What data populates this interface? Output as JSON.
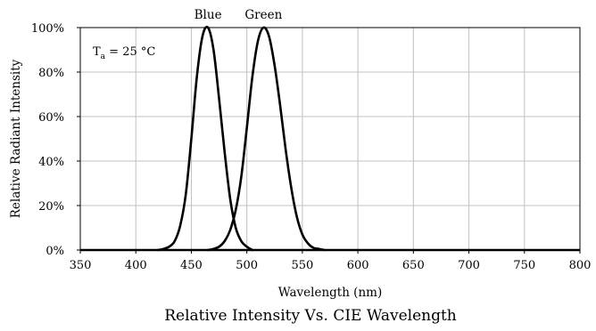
{
  "chart_data": {
    "type": "line",
    "title": "Relative Intensity Vs. CIE Wavelength",
    "xlabel": "Wavelength (nm)",
    "ylabel": "Relative Radiant Intensity",
    "xlim": [
      350,
      800
    ],
    "ylim": [
      0,
      100
    ],
    "x_ticks": [
      350,
      400,
      450,
      500,
      550,
      600,
      650,
      700,
      750,
      800
    ],
    "y_ticks": [
      0,
      20,
      40,
      60,
      80,
      100
    ],
    "y_tick_labels": [
      "0%",
      "20%",
      "40%",
      "60%",
      "80%",
      "100%"
    ],
    "grid": true,
    "annotation": {
      "symbol": "T",
      "subscript": "a",
      "text": " = 25 °C"
    },
    "line_color": "#000000",
    "grid_color": "#c0c0c0",
    "series": [
      {
        "name": "Blue",
        "x": [
          420,
          425,
          430,
          435,
          440,
          445,
          450,
          455,
          460,
          465,
          470,
          475,
          480,
          485,
          490,
          495,
          500,
          505
        ],
        "y": [
          0,
          0.5,
          1.5,
          4,
          11,
          25,
          50,
          78,
          96,
          100,
          90,
          68,
          44,
          23,
          10,
          4,
          1.5,
          0
        ]
      },
      {
        "name": "Green",
        "x": [
          465,
          470,
          475,
          480,
          485,
          490,
          495,
          500,
          505,
          510,
          515,
          520,
          525,
          530,
          535,
          540,
          545,
          550,
          555,
          560,
          565,
          570
        ],
        "y": [
          0,
          0.5,
          1.5,
          4,
          9,
          18,
          33,
          55,
          78,
          94,
          100,
          96,
          83,
          65,
          45,
          28,
          15,
          7,
          3,
          1,
          0.5,
          0
        ]
      }
    ]
  }
}
